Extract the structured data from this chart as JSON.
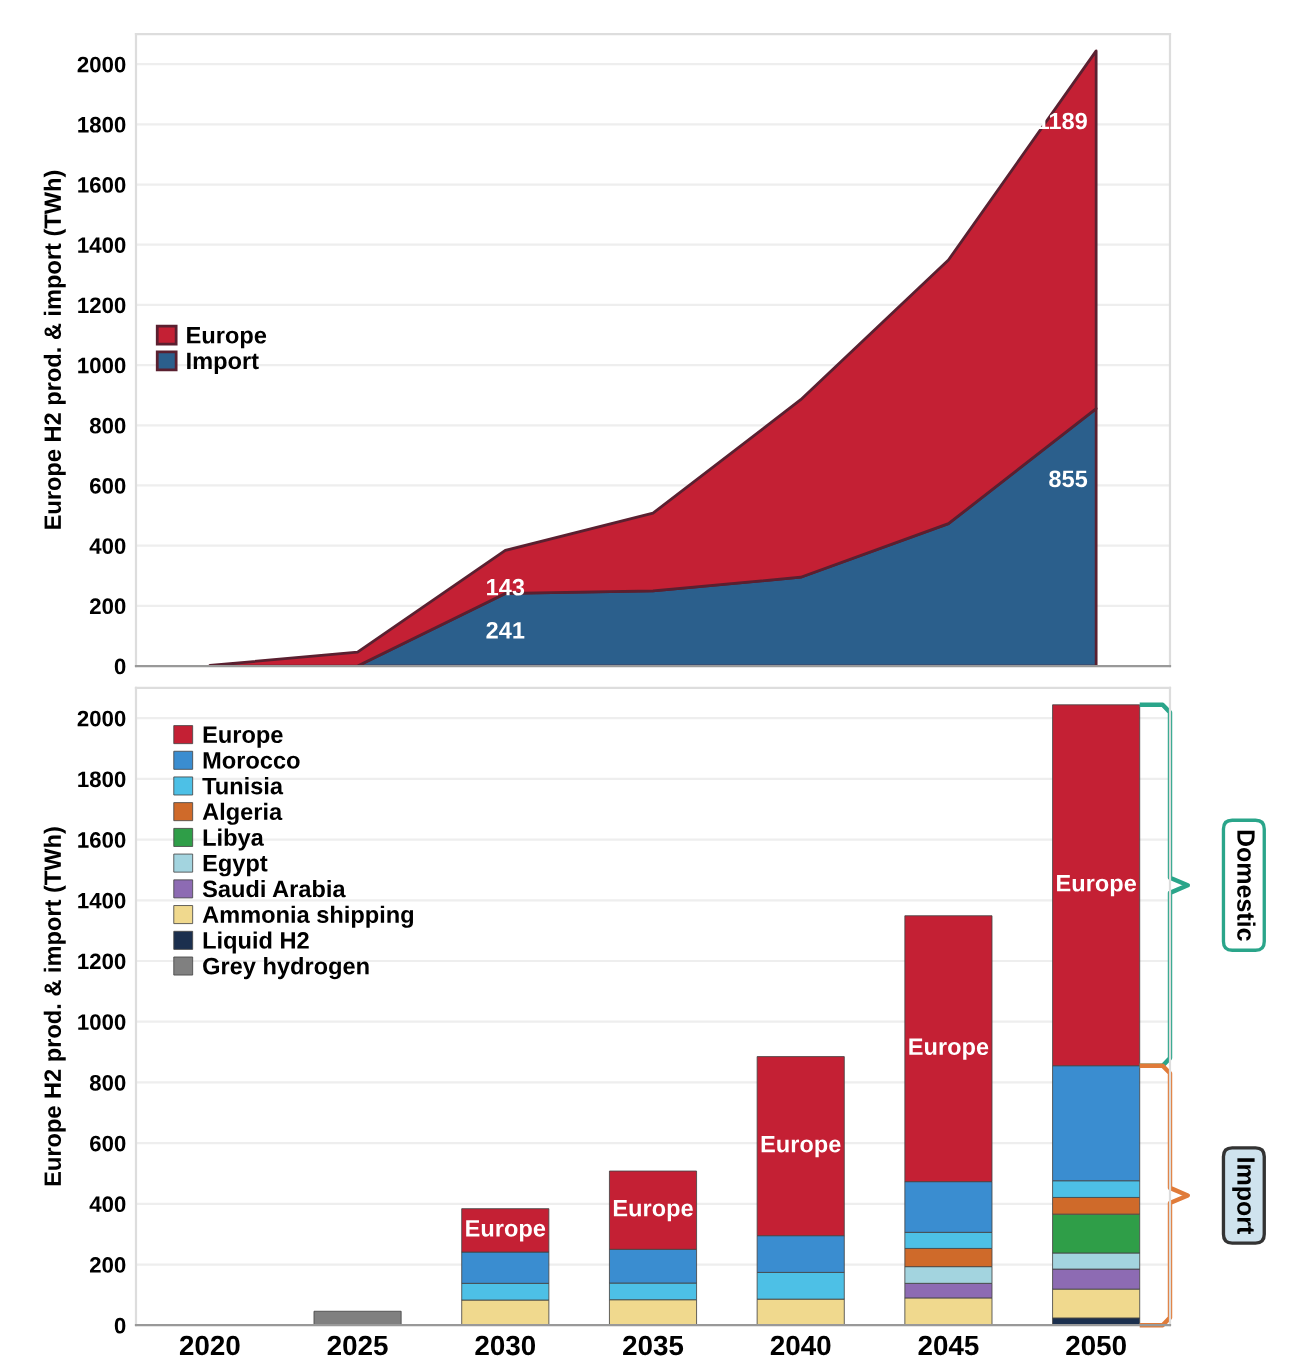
{
  "chart_data": [
    {
      "type": "area",
      "stacked": true,
      "ylabel": "Europe H2 prod. & import (TWh)",
      "categories": [
        "2020",
        "2025",
        "2030",
        "2035",
        "2040",
        "2045",
        "2050"
      ],
      "ylim": [
        0,
        2100
      ],
      "yticks": [
        0,
        200,
        400,
        600,
        800,
        1000,
        1200,
        1400,
        1600,
        1800,
        2000
      ],
      "grid": "y",
      "legend": "center left",
      "tick_labels": "y",
      "series": [
        {
          "name": "Import",
          "color": "#2b5f8c",
          "values": [
            0,
            0,
            241,
            250,
            295,
            473,
            855
          ],
          "value_labels": [
            null,
            null,
            "241",
            null,
            null,
            null,
            "855"
          ]
        },
        {
          "name": "Europe",
          "color": "#c42034",
          "values": [
            2,
            46,
            143,
            258,
            590,
            876,
            1189
          ],
          "value_labels": [
            null,
            null,
            "143",
            null,
            null,
            null,
            "1189"
          ]
        }
      ]
    },
    {
      "type": "bar",
      "stacked": true,
      "ylabel": "Europe H2 prod. & import (TWh)",
      "categories": [
        "2020",
        "2025",
        "2030",
        "2035",
        "2040",
        "2045",
        "2050"
      ],
      "ylim": [
        0,
        2100
      ],
      "yticks": [
        0,
        200,
        400,
        600,
        800,
        1000,
        1200,
        1400,
        1600,
        1800,
        2000
      ],
      "grid": "y",
      "legend": "upper left",
      "annotations": [
        "Domestic",
        "Import"
      ],
      "series": [
        {
          "name": "Grey hydrogen",
          "color": "#808080",
          "values": [
            2,
            46,
            null,
            null,
            null,
            null,
            null
          ]
        },
        {
          "name": "Liquid H2",
          "color": "#1b2f4e",
          "values": [
            null,
            null,
            null,
            null,
            null,
            null,
            24
          ]
        },
        {
          "name": "Ammonia shipping",
          "color": "#f0d98e",
          "values": [
            null,
            null,
            83,
            84,
            86,
            90,
            95
          ]
        },
        {
          "name": "Saudi Arabia",
          "color": "#8d6bb3",
          "values": [
            null,
            null,
            null,
            null,
            null,
            48,
            66
          ]
        },
        {
          "name": "Egypt",
          "color": "#a3d4df",
          "values": [
            null,
            null,
            null,
            null,
            null,
            55,
            53
          ]
        },
        {
          "name": "Libya",
          "color": "#2f9e48",
          "values": [
            null,
            null,
            null,
            null,
            null,
            null,
            128
          ]
        },
        {
          "name": "Algeria",
          "color": "#cf6a2a",
          "values": [
            null,
            null,
            null,
            null,
            null,
            60,
            55
          ]
        },
        {
          "name": "Tunisia",
          "color": "#4dc0e6",
          "values": [
            null,
            null,
            55,
            55,
            88,
            53,
            55
          ]
        },
        {
          "name": "Morocco",
          "color": "#3a8dd0",
          "values": [
            null,
            null,
            103,
            111,
            121,
            167,
            379
          ]
        },
        {
          "name": "Europe",
          "color": "#c42034",
          "values": [
            null,
            null,
            143,
            258,
            590,
            876,
            1189
          ],
          "value_labels": [
            null,
            null,
            "Europe",
            "Europe",
            "Europe",
            "Europe",
            "Europe"
          ]
        }
      ]
    }
  ]
}
